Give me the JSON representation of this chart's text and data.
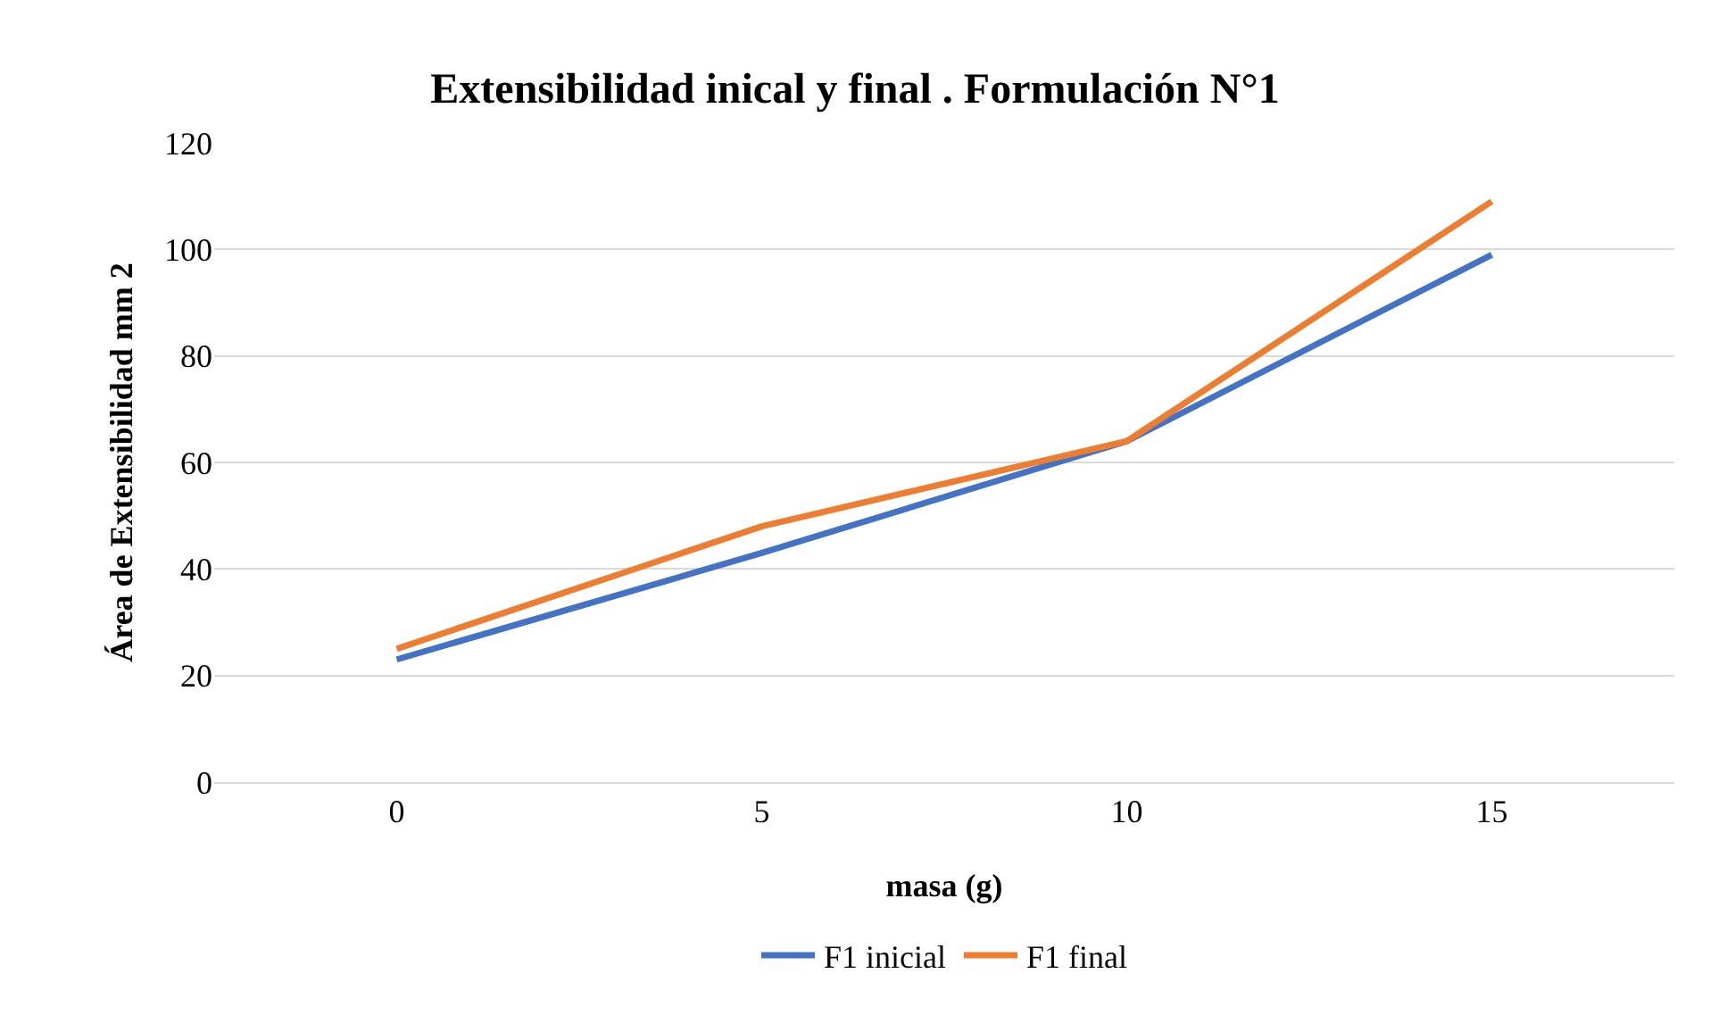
{
  "chart_data": {
    "type": "line",
    "title": "Extensibilidad inical y final . Formulación N°1",
    "xlabel": "masa (g)",
    "ylabel": "Área de Extensibilidad mm 2",
    "categories": [
      "0",
      "5",
      "10",
      "15"
    ],
    "series": [
      {
        "name": "F1 inicial",
        "color": "#4472c4",
        "values": [
          23,
          43,
          64,
          99
        ]
      },
      {
        "name": "F1 final",
        "color": "#ed7d31",
        "values": [
          25,
          48,
          64,
          109
        ]
      }
    ],
    "ylim": [
      0,
      120
    ],
    "yticks": [
      0,
      20,
      40,
      60,
      80,
      100,
      120
    ],
    "grid": "y",
    "legend": "bottom",
    "marker": "none",
    "line_style": "solid"
  }
}
